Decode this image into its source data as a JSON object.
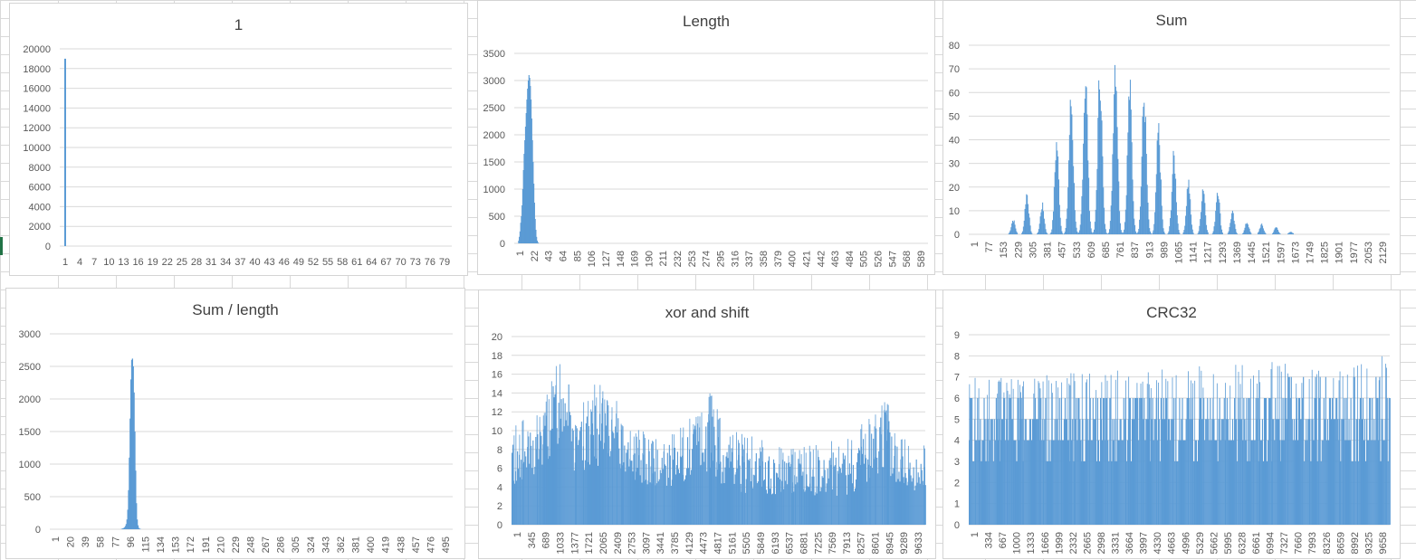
{
  "colors": {
    "bar": "#5b9bd5",
    "grid": "#d9d9d9",
    "text": "#595959",
    "title": "#404040"
  },
  "chart_data": [
    {
      "type": "bar",
      "title": "1",
      "ylim": [
        0,
        20000
      ],
      "yticks": [
        0,
        2000,
        4000,
        6000,
        8000,
        10000,
        12000,
        14000,
        16000,
        18000,
        20000
      ],
      "xtick_labels": [
        "1",
        "4",
        "7",
        "10",
        "13",
        "16",
        "19",
        "22",
        "25",
        "28",
        "31",
        "34",
        "37",
        "40",
        "43",
        "46",
        "49",
        "52",
        "55",
        "58",
        "61",
        "64",
        "67",
        "70",
        "73",
        "76",
        "79"
      ],
      "xtick_rotate": false,
      "n": 79,
      "series": [
        {
          "values": [
            19000
          ]
        }
      ],
      "grid": true,
      "legend": "none"
    },
    {
      "type": "bar",
      "title": "Length",
      "ylim": [
        0,
        3500
      ],
      "yticks": [
        0,
        500,
        1000,
        1500,
        2000,
        2500,
        3000,
        3500
      ],
      "xtick_labels": [
        "1",
        "22",
        "43",
        "64",
        "85",
        "106",
        "127",
        "148",
        "169",
        "190",
        "211",
        "232",
        "253",
        "274",
        "295",
        "316",
        "337",
        "358",
        "379",
        "400",
        "421",
        "442",
        "463",
        "484",
        "505",
        "526",
        "547",
        "568",
        "589"
      ],
      "xtick_rotate": true,
      "n": 600,
      "series": [
        {
          "values": [
            0,
            0,
            0,
            50,
            120,
            220,
            380,
            500,
            700,
            1000,
            1350,
            1650,
            1900,
            2150,
            2400,
            2650,
            2850,
            3000,
            3100,
            3050,
            2900,
            2650,
            2300,
            1900,
            1500,
            1100,
            750,
            450,
            250,
            120,
            50,
            20,
            5
          ]
        }
      ],
      "grid": true,
      "legend": "none"
    },
    {
      "type": "bar",
      "title": "Sum",
      "ylim": [
        0,
        80
      ],
      "yticks": [
        0,
        10,
        20,
        30,
        40,
        50,
        60,
        70,
        80
      ],
      "xtick_labels": [
        "1",
        "77",
        "153",
        "229",
        "305",
        "381",
        "457",
        "533",
        "609",
        "685",
        "761",
        "837",
        "913",
        "989",
        "1065",
        "1141",
        "1217",
        "1293",
        "1369",
        "1445",
        "1521",
        "1597",
        "1673",
        "1749",
        "1825",
        "1901",
        "1977",
        "2053",
        "2129"
      ],
      "xtick_rotate": true,
      "n": 2190,
      "series": [
        {
          "values": []
        }
      ],
      "peaks": [
        {
          "x": 229,
          "h": 6,
          "w": 14
        },
        {
          "x": 300,
          "h": 17,
          "w": 14
        },
        {
          "x": 380,
          "h": 12,
          "w": 14
        },
        {
          "x": 455,
          "h": 38,
          "w": 15
        },
        {
          "x": 530,
          "h": 55,
          "w": 16
        },
        {
          "x": 605,
          "h": 65,
          "w": 16
        },
        {
          "x": 680,
          "h": 67,
          "w": 16
        },
        {
          "x": 760,
          "h": 73,
          "w": 16
        },
        {
          "x": 835,
          "h": 60,
          "w": 16
        },
        {
          "x": 910,
          "h": 57,
          "w": 16
        },
        {
          "x": 985,
          "h": 43,
          "w": 15
        },
        {
          "x": 1065,
          "h": 32,
          "w": 15
        },
        {
          "x": 1140,
          "h": 22,
          "w": 14
        },
        {
          "x": 1217,
          "h": 20,
          "w": 14
        },
        {
          "x": 1293,
          "h": 19,
          "w": 14
        },
        {
          "x": 1369,
          "h": 9,
          "w": 14
        },
        {
          "x": 1445,
          "h": 5,
          "w": 14
        },
        {
          "x": 1521,
          "h": 4,
          "w": 14
        },
        {
          "x": 1597,
          "h": 3,
          "w": 14
        },
        {
          "x": 1673,
          "h": 1,
          "w": 14
        }
      ],
      "grid": true,
      "legend": "none"
    },
    {
      "type": "bar",
      "title": "Sum / length",
      "ylim": [
        0,
        3000
      ],
      "yticks": [
        0,
        500,
        1000,
        1500,
        2000,
        2500,
        3000
      ],
      "xtick_labels": [
        "1",
        "20",
        "39",
        "58",
        "77",
        "96",
        "115",
        "134",
        "153",
        "172",
        "191",
        "210",
        "229",
        "248",
        "267",
        "286",
        "305",
        "324",
        "343",
        "362",
        "381",
        "400",
        "419",
        "438",
        "457",
        "476",
        "495"
      ],
      "xtick_rotate": true,
      "n": 510,
      "series": [
        {
          "values": [
            5,
            10,
            15,
            20,
            30,
            50,
            80,
            150,
            300,
            600,
            1100,
            1700,
            2300,
            2600,
            2620,
            2500,
            2100,
            1500,
            900,
            400,
            150,
            60,
            20,
            10,
            5
          ]
        }
      ],
      "series_start": 90,
      "grid": true,
      "legend": "none"
    },
    {
      "type": "bar",
      "title": "xor and shift",
      "ylim": [
        0,
        20
      ],
      "yticks": [
        0,
        2,
        4,
        6,
        8,
        10,
        12,
        14,
        16,
        18,
        20
      ],
      "xtick_labels": [
        "1",
        "345",
        "689",
        "1033",
        "1377",
        "1721",
        "2065",
        "2409",
        "2753",
        "3097",
        "3441",
        "3785",
        "4129",
        "4473",
        "4817",
        "5161",
        "5505",
        "5849",
        "6193",
        "6537",
        "6881",
        "7225",
        "7569",
        "7913",
        "8257",
        "8601",
        "8945",
        "9289",
        "9633"
      ],
      "xtick_rotate": true,
      "n": 9950,
      "series": [
        {
          "values": []
        }
      ],
      "profile": [
        {
          "x": 0,
          "lo": 4,
          "hi": 9
        },
        {
          "x": 700,
          "lo": 5,
          "hi": 11
        },
        {
          "x": 1033,
          "lo": 8,
          "hi": 16
        },
        {
          "x": 1377,
          "lo": 10,
          "hi": 18
        },
        {
          "x": 1500,
          "lo": 5,
          "hi": 10
        },
        {
          "x": 2065,
          "lo": 6,
          "hi": 14
        },
        {
          "x": 2409,
          "lo": 6,
          "hi": 13
        },
        {
          "x": 2753,
          "lo": 5,
          "hi": 9
        },
        {
          "x": 3441,
          "lo": 4,
          "hi": 8
        },
        {
          "x": 4129,
          "lo": 4,
          "hi": 9
        },
        {
          "x": 4473,
          "lo": 5,
          "hi": 11
        },
        {
          "x": 4817,
          "lo": 5,
          "hi": 13
        },
        {
          "x": 5161,
          "lo": 4,
          "hi": 9
        },
        {
          "x": 5849,
          "lo": 3,
          "hi": 8
        },
        {
          "x": 6537,
          "lo": 3,
          "hi": 7
        },
        {
          "x": 7225,
          "lo": 3,
          "hi": 7
        },
        {
          "x": 7913,
          "lo": 3,
          "hi": 8
        },
        {
          "x": 8601,
          "lo": 4,
          "hi": 10
        },
        {
          "x": 8945,
          "lo": 4,
          "hi": 13
        },
        {
          "x": 9289,
          "lo": 4,
          "hi": 8
        },
        {
          "x": 9950,
          "lo": 3,
          "hi": 7
        }
      ],
      "grid": true,
      "legend": "none"
    },
    {
      "type": "bar",
      "title": "CRC32",
      "ylim": [
        0,
        9
      ],
      "yticks": [
        0,
        1,
        2,
        3,
        4,
        5,
        6,
        7,
        8,
        9
      ],
      "xtick_labels": [
        "1",
        "334",
        "667",
        "1000",
        "1333",
        "1666",
        "1999",
        "2332",
        "2665",
        "2998",
        "3331",
        "3664",
        "3997",
        "4330",
        "4663",
        "4996",
        "5329",
        "5662",
        "5995",
        "6328",
        "6661",
        "6994",
        "7327",
        "7660",
        "7993",
        "8326",
        "8659",
        "8992",
        "9325",
        "9658"
      ],
      "xtick_rotate": true,
      "n": 9950,
      "series": [
        {
          "values": []
        }
      ],
      "profile": [
        {
          "x": 0,
          "lo": 3,
          "hi": 6
        },
        {
          "x": 9950,
          "lo": 3,
          "hi": 7
        }
      ],
      "grid": true,
      "legend": "none"
    }
  ]
}
